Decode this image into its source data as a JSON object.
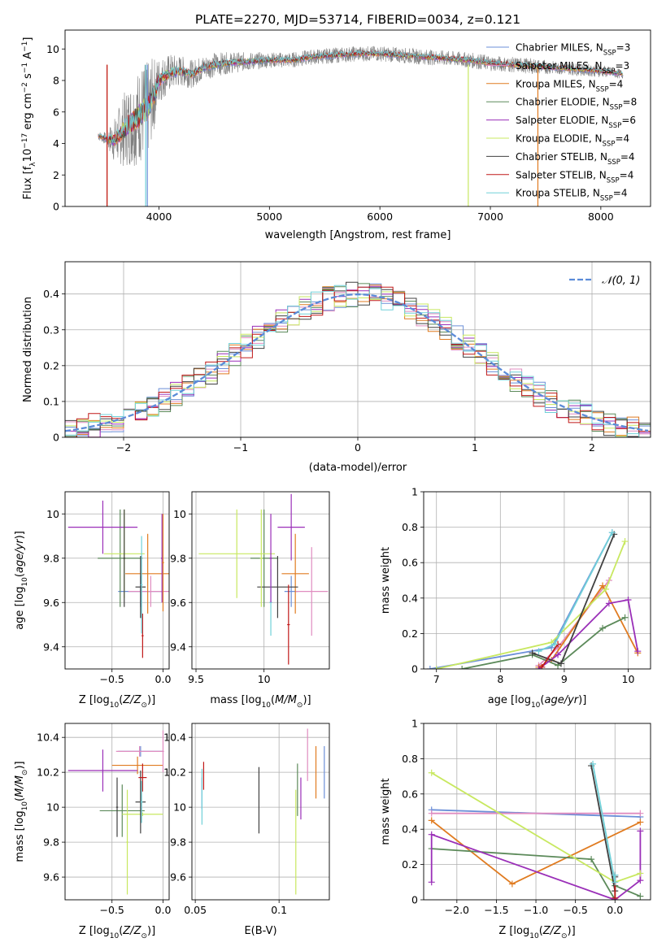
{
  "figure_title": "PLATE=2270, MJD=53714, FIBERID=0034, z=0.121",
  "colors": {
    "chabrier_miles": "#6b8fd8",
    "salpeter_miles": "#e08cc0",
    "kroupa_miles": "#e07b20",
    "chabrier_elodie": "#5c8a5a",
    "salpeter_elodie": "#9a2fb8",
    "kroupa_elodie": "#c8e860",
    "chabrier_stelib": "#404040",
    "salpeter_stelib": "#c01818",
    "kroupa_stelib": "#70d0d8",
    "spectrum": "#808080",
    "normal": "#5b8bd8",
    "grid": "#b0b0b0"
  },
  "chart_data": [
    {
      "id": "spectrum",
      "type": "line",
      "xlabel": "wavelength [Angstrom, rest frame]",
      "ylabel_text": "Flux [f",
      "ylabel_sub": "λ",
      "ylabel_mid": "10",
      "ylabel_sup1": "−17",
      "ylabel_mid2": " erg cm",
      "ylabel_sup2": "−2",
      "ylabel_mid3": " s",
      "ylabel_sup3": "−1",
      "ylabel_mid4": " A",
      "ylabel_sup4": "−1",
      "ylabel_end": "]",
      "xlim": [
        3150,
        8450
      ],
      "ylim": [
        0,
        11.2
      ],
      "xticks": [
        4000,
        5000,
        6000,
        7000,
        8000
      ],
      "yticks": [
        0,
        2,
        4,
        6,
        8,
        10
      ],
      "grid": false,
      "legend_position": "top-right",
      "legend": [
        {
          "pre": "Chabrier MILES, N",
          "sub": "SSP",
          "post": "=3",
          "color_key": "chabrier_miles"
        },
        {
          "pre": "Salpeter MILES, N",
          "sub": "SSP",
          "post": "=3",
          "color_key": "salpeter_miles"
        },
        {
          "pre": "Kroupa MILES, N",
          "sub": "SSP",
          "post": "=4",
          "color_key": "kroupa_miles"
        },
        {
          "pre": "Chabrier ELODIE, N",
          "sub": "SSP",
          "post": "=8",
          "color_key": "chabrier_elodie"
        },
        {
          "pre": "Salpeter ELODIE, N",
          "sub": "SSP",
          "post": "=6",
          "color_key": "salpeter_elodie"
        },
        {
          "pre": "Kroupa ELODIE, N",
          "sub": "SSP",
          "post": "=4",
          "color_key": "kroupa_elodie"
        },
        {
          "pre": "Chabrier STELIB, N",
          "sub": "SSP",
          "post": "=4",
          "color_key": "chabrier_stelib"
        },
        {
          "pre": "Salpeter STELIB, N",
          "sub": "SSP",
          "post": "=4",
          "color_key": "salpeter_stelib"
        },
        {
          "pre": "Kroupa STELIB, N",
          "sub": "SSP",
          "post": "=4",
          "color_key": "kroupa_stelib"
        }
      ],
      "spectrum_anchors": {
        "x": [
          3450,
          3520,
          3600,
          3700,
          3800,
          3850,
          3900,
          3950,
          4000,
          4100,
          4200,
          4300,
          4400,
          4500,
          4600,
          4800,
          5000,
          5200,
          5400,
          5600,
          5800,
          6000,
          6200,
          6400,
          6600,
          6800,
          7000,
          7200,
          7400,
          7600,
          7800,
          8000,
          8200
        ],
        "y": [
          4.5,
          4.3,
          4.2,
          5.0,
          5.6,
          6.0,
          6.2,
          7.0,
          8.0,
          8.5,
          8.6,
          8.4,
          8.8,
          9.0,
          9.1,
          9.2,
          9.3,
          9.3,
          9.5,
          9.6,
          9.7,
          9.7,
          9.6,
          9.5,
          9.4,
          9.3,
          9.1,
          9.0,
          8.9,
          8.8,
          8.7,
          8.6,
          8.4
        ],
        "noise": [
          0.3,
          0.4,
          1.5,
          2.5,
          3.0,
          3.2,
          3.0,
          2.5,
          1.5,
          1.2,
          1.0,
          0.9,
          0.8,
          0.8,
          0.7,
          0.6,
          0.5,
          0.5,
          0.5,
          0.5,
          0.5,
          0.5,
          0.5,
          0.5,
          0.5,
          0.5,
          0.5,
          0.5,
          0.5,
          0.4,
          0.4,
          0.4,
          0.3
        ]
      },
      "drops": [
        {
          "x": 3530,
          "color_key": "kroupa_miles"
        },
        {
          "x": 3530,
          "color_key": "salpeter_stelib"
        },
        {
          "x": 3880,
          "color_key": "kroupa_stelib"
        },
        {
          "x": 3895,
          "color_key": "chabrier_miles"
        },
        {
          "x": 6800,
          "color_key": "kroupa_elodie"
        },
        {
          "x": 7430,
          "color_key": "kroupa_miles"
        }
      ]
    },
    {
      "id": "residual_hist",
      "type": "line",
      "xlabel": "(data-model)/error",
      "ylabel": "Normed distribution",
      "xlim": [
        -2.5,
        2.5
      ],
      "ylim": [
        0,
        0.49
      ],
      "xticks": [
        -2,
        -1,
        0,
        1,
        2
      ],
      "yticks": [
        0.0,
        0.1,
        0.2,
        0.3,
        0.4
      ],
      "grid": true,
      "legend_position": "top-right",
      "normal_label": "𝒩(0, 1)",
      "bin_width": 0.1
    },
    {
      "id": "age_vs_Z",
      "type": "scatter",
      "xlabel_pre": "Z [log",
      "xlabel_sub": "10",
      "xlabel_post": "(Z/Z",
      "xlabel_sub2": "⊙",
      "xlabel_end": ")]",
      "ylabel_pre": "age  [log",
      "ylabel_sub": "10",
      "ylabel_post": "(age/yr)]",
      "xlim": [
        -0.96,
        0.06
      ],
      "ylim": [
        9.3,
        10.1
      ],
      "xticks": [
        -0.5,
        0.0
      ],
      "xticklabels": [
        "−0.5",
        "0.0"
      ],
      "yticks": [
        9.4,
        9.6,
        9.8,
        10.0
      ],
      "grid": true,
      "points": [
        {
          "x": -0.22,
          "y": 9.65,
          "xerr": 0.22,
          "yerr": 0.07,
          "color_key": "chabrier_miles"
        },
        {
          "x": -0.12,
          "y": 9.65,
          "xerr": 0.22,
          "yerr": 0.07,
          "color_key": "salpeter_miles"
        },
        {
          "x": -0.15,
          "y": 9.73,
          "xerr": 0.22,
          "yerr": 0.18,
          "color_key": "kroupa_miles"
        },
        {
          "x": -0.42,
          "y": 9.8,
          "xerr": 0.22,
          "yerr": 0.22,
          "color_key": "chabrier_elodie"
        },
        {
          "x": -0.59,
          "y": 9.94,
          "xerr": 0.34,
          "yerr": 0.12,
          "color_key": "salpeter_elodie"
        },
        {
          "x": -0.38,
          "y": 9.82,
          "xerr": 0.2,
          "yerr": 0.2,
          "color_key": "kroupa_elodie"
        },
        {
          "x": -0.22,
          "y": 9.67,
          "xerr": 0.05,
          "yerr": 0.14,
          "color_key": "chabrier_stelib"
        },
        {
          "x": -0.2,
          "y": 9.45,
          "xerr": 0.01,
          "yerr": 0.1,
          "color_key": "salpeter_stelib"
        },
        {
          "x": -0.21,
          "y": 9.68,
          "xerr": 0.01,
          "yerr": 0.22,
          "color_key": "kroupa_stelib"
        },
        {
          "x": -0.01,
          "y": 9.8,
          "xerr": 0.01,
          "yerr": 0.2,
          "color_key": "salpeter_elodie"
        },
        {
          "x": 0.0,
          "y": 9.78,
          "xerr": 0.01,
          "yerr": 0.22,
          "color_key": "kroupa_miles"
        },
        {
          "x": -0.38,
          "y": 9.8,
          "xerr": 0.01,
          "yerr": 0.22,
          "color_key": "chabrier_stelib"
        }
      ]
    },
    {
      "id": "age_vs_mass",
      "type": "scatter",
      "xlabel_pre": "mass [log",
      "xlabel_sub": "10",
      "xlabel_post": "(M/M",
      "xlabel_sub2": "⊙",
      "xlabel_end": ")]",
      "xlim": [
        9.47,
        10.48
      ],
      "ylim": [
        9.3,
        10.1
      ],
      "xticks": [
        9.5,
        10.0
      ],
      "yticks": [
        9.4,
        9.6,
        9.8,
        10.0
      ],
      "grid": true,
      "points": [
        {
          "x": 10.2,
          "y": 9.65,
          "xerr": 0.05,
          "yerr": 0.07,
          "color_key": "chabrier_miles"
        },
        {
          "x": 10.35,
          "y": 9.65,
          "xerr": 0.12,
          "yerr": 0.2,
          "color_key": "salpeter_miles"
        },
        {
          "x": 10.23,
          "y": 9.73,
          "xerr": 0.1,
          "yerr": 0.18,
          "color_key": "kroupa_miles"
        },
        {
          "x": 10.0,
          "y": 9.8,
          "xerr": 0.1,
          "yerr": 0.22,
          "color_key": "chabrier_elodie"
        },
        {
          "x": 10.2,
          "y": 9.94,
          "xerr": 0.1,
          "yerr": 0.15,
          "color_key": "salpeter_elodie"
        },
        {
          "x": 9.8,
          "y": 9.82,
          "xerr": 0.28,
          "yerr": 0.2,
          "color_key": "kroupa_elodie"
        },
        {
          "x": 10.1,
          "y": 9.67,
          "xerr": 0.15,
          "yerr": 0.14,
          "color_key": "chabrier_stelib"
        },
        {
          "x": 10.18,
          "y": 9.5,
          "xerr": 0.01,
          "yerr": 0.18,
          "color_key": "salpeter_stelib"
        },
        {
          "x": 10.05,
          "y": 9.6,
          "xerr": 0.01,
          "yerr": 0.15,
          "color_key": "kroupa_stelib"
        },
        {
          "x": 10.05,
          "y": 9.8,
          "xerr": 0.01,
          "yerr": 0.2,
          "color_key": "salpeter_elodie"
        },
        {
          "x": 9.98,
          "y": 9.8,
          "xerr": 0.01,
          "yerr": 0.22,
          "color_key": "kroupa_elodie"
        }
      ]
    },
    {
      "id": "weight_vs_age",
      "type": "line",
      "xlabel_pre": "age  [log",
      "xlabel_sub": "10",
      "xlabel_post": "(age/yr)]",
      "ylabel": "mass weight",
      "xlim": [
        6.8,
        10.35
      ],
      "ylim": [
        0,
        1.0
      ],
      "xticks": [
        7,
        8,
        9,
        10
      ],
      "yticks": [
        0.0,
        0.2,
        0.4,
        0.6,
        0.8,
        1.0
      ],
      "grid": true,
      "series": [
        {
          "color_key": "chabrier_miles",
          "x": [
            6.9,
            8.8,
            9.75
          ],
          "y": [
            0.0,
            0.12,
            0.77
          ]
        },
        {
          "color_key": "salpeter_miles",
          "x": [
            8.6,
            8.9,
            9.7
          ],
          "y": [
            0.02,
            0.12,
            0.5
          ]
        },
        {
          "color_key": "kroupa_miles",
          "x": [
            8.6,
            8.8,
            9.6,
            10.15
          ],
          "y": [
            0.01,
            0.05,
            0.47,
            0.09
          ]
        },
        {
          "color_key": "chabrier_elodie",
          "x": [
            7.4,
            8.5,
            8.9,
            9.6,
            9.95
          ],
          "y": [
            0.0,
            0.08,
            0.02,
            0.23,
            0.29
          ]
        },
        {
          "color_key": "salpeter_elodie",
          "x": [
            8.6,
            8.9,
            9.7,
            10.0,
            10.15
          ],
          "y": [
            0.0,
            0.08,
            0.37,
            0.39,
            0.1
          ]
        },
        {
          "color_key": "kroupa_elodie",
          "x": [
            7.0,
            8.8,
            9.65,
            9.95
          ],
          "y": [
            0.0,
            0.15,
            0.45,
            0.72
          ]
        },
        {
          "color_key": "chabrier_stelib",
          "x": [
            8.5,
            8.95,
            9.78
          ],
          "y": [
            0.09,
            0.03,
            0.76
          ]
        },
        {
          "color_key": "salpeter_stelib",
          "x": [
            8.65,
            8.9
          ],
          "y": [
            0.01,
            0.14
          ]
        },
        {
          "color_key": "kroupa_stelib",
          "x": [
            8.6,
            8.85,
            9.75
          ],
          "y": [
            0.1,
            0.14,
            0.77
          ]
        }
      ]
    },
    {
      "id": "mass_vs_Z",
      "type": "scatter",
      "xlabel_pre": "Z [log",
      "xlabel_sub": "10",
      "xlabel_post": "(Z/Z",
      "xlabel_sub2": "⊙",
      "xlabel_end": ")]",
      "ylabel_pre": "mass [log",
      "ylabel_sub": "10",
      "ylabel_post": "(M/M",
      "ylabel_sub2": "⊙",
      "ylabel_end": ")]",
      "xlim": [
        -0.96,
        0.06
      ],
      "ylim": [
        9.47,
        10.48
      ],
      "xticks": [
        -0.5,
        0.0
      ],
      "xticklabels": [
        "−0.5",
        "0.0"
      ],
      "yticks": [
        9.6,
        9.8,
        10.0,
        10.2,
        10.4
      ],
      "grid": true,
      "points": [
        {
          "x": -0.22,
          "y": 10.32,
          "xerr": 0.22,
          "yerr": 0.03,
          "color_key": "chabrier_miles"
        },
        {
          "x": -0.23,
          "y": 10.32,
          "xerr": 0.23,
          "yerr": 0.03,
          "color_key": "salpeter_miles"
        },
        {
          "x": -0.25,
          "y": 10.24,
          "xerr": 0.25,
          "yerr": 0.05,
          "color_key": "kroupa_miles"
        },
        {
          "x": -0.4,
          "y": 9.98,
          "xerr": 0.22,
          "yerr": 0.15,
          "color_key": "chabrier_elodie"
        },
        {
          "x": -0.59,
          "y": 10.21,
          "xerr": 0.34,
          "yerr": 0.12,
          "color_key": "salpeter_elodie"
        },
        {
          "x": -0.2,
          "y": 9.96,
          "xerr": 0.2,
          "yerr": 0.01,
          "color_key": "kroupa_elodie"
        },
        {
          "x": -0.22,
          "y": 10.03,
          "xerr": 0.05,
          "yerr": 0.18,
          "color_key": "chabrier_stelib"
        },
        {
          "x": -0.2,
          "y": 10.17,
          "xerr": 0.04,
          "yerr": 0.08,
          "color_key": "salpeter_stelib"
        },
        {
          "x": -0.21,
          "y": 10.03,
          "xerr": 0.01,
          "yerr": 0.12,
          "color_key": "kroupa_stelib"
        },
        {
          "x": -0.35,
          "y": 9.8,
          "xerr": 0.01,
          "yerr": 0.3,
          "color_key": "kroupa_elodie"
        },
        {
          "x": -0.45,
          "y": 10.0,
          "xerr": 0.01,
          "yerr": 0.17,
          "color_key": "chabrier_stelib"
        },
        {
          "x": 0.0,
          "y": 10.32,
          "xerr": 0.01,
          "yerr": 0.12,
          "color_key": "salpeter_miles"
        }
      ]
    },
    {
      "id": "mass_vs_ebv",
      "type": "scatter",
      "xlabel": "E(B-V)",
      "xlim": [
        0.048,
        0.13
      ],
      "ylim": [
        9.47,
        10.48
      ],
      "xticks": [
        0.05,
        0.1
      ],
      "yticks": [
        9.6,
        9.8,
        10.0,
        10.2,
        10.4
      ],
      "grid": true,
      "points": [
        {
          "x": 0.054,
          "y": 10.08,
          "xerr": 0,
          "yerr": 0.09,
          "color_key": "chabrier_miles"
        },
        {
          "x": 0.054,
          "y": 10.06,
          "xerr": 0,
          "yerr": 0.16,
          "color_key": "kroupa_stelib"
        },
        {
          "x": 0.055,
          "y": 10.18,
          "xerr": 0,
          "yerr": 0.08,
          "color_key": "salpeter_stelib"
        },
        {
          "x": 0.088,
          "y": 10.04,
          "xerr": 0,
          "yerr": 0.19,
          "color_key": "chabrier_stelib"
        },
        {
          "x": 0.11,
          "y": 9.8,
          "xerr": 0,
          "yerr": 0.3,
          "color_key": "kroupa_elodie"
        },
        {
          "x": 0.111,
          "y": 10.1,
          "xerr": 0,
          "yerr": 0.15,
          "color_key": "chabrier_elodie"
        },
        {
          "x": 0.113,
          "y": 10.05,
          "xerr": 0,
          "yerr": 0.12,
          "color_key": "salpeter_elodie"
        },
        {
          "x": 0.117,
          "y": 10.3,
          "xerr": 0,
          "yerr": 0.15,
          "color_key": "salpeter_miles"
        },
        {
          "x": 0.122,
          "y": 10.2,
          "xerr": 0,
          "yerr": 0.15,
          "color_key": "kroupa_miles"
        },
        {
          "x": 0.127,
          "y": 10.2,
          "xerr": 0,
          "yerr": 0.15,
          "color_key": "chabrier_miles"
        }
      ]
    },
    {
      "id": "weight_vs_Z",
      "type": "line",
      "xlabel_pre": "Z [log",
      "xlabel_sub": "10",
      "xlabel_post": "(Z/Z",
      "xlabel_sub2": "⊙",
      "xlabel_end": ")]",
      "ylabel": "mass weight",
      "xlim": [
        -2.42,
        0.45
      ],
      "ylim": [
        0,
        1.0
      ],
      "xticks": [
        -2.0,
        -1.5,
        -1.0,
        -0.5,
        0.0
      ],
      "xticklabels": [
        "−2.0",
        "−1.5",
        "−1.0",
        "−0.5",
        "0.0"
      ],
      "yticks": [
        0.0,
        0.2,
        0.4,
        0.6,
        0.8,
        1.0
      ],
      "grid": true,
      "series": [
        {
          "color_key": "chabrier_miles",
          "x": [
            -2.32,
            0.32
          ],
          "y": [
            0.51,
            0.47
          ]
        },
        {
          "color_key": "salpeter_miles",
          "x": [
            -2.32,
            0.32
          ],
          "y": [
            0.49,
            0.49
          ]
        },
        {
          "color_key": "kroupa_miles",
          "x": [
            -2.32,
            -1.3,
            0.32
          ],
          "y": [
            0.45,
            0.09,
            0.44
          ]
        },
        {
          "color_key": "chabrier_elodie",
          "x": [
            -2.32,
            -0.3,
            0.0,
            0.0,
            0.32
          ],
          "y": [
            0.29,
            0.23,
            0.0,
            0.08,
            0.02
          ]
        },
        {
          "color_key": "salpeter_elodie",
          "x": [
            -2.32,
            -2.32,
            0.0,
            0.32,
            0.32
          ],
          "y": [
            0.1,
            0.37,
            0.0,
            0.11,
            0.39
          ]
        },
        {
          "color_key": "kroupa_elodie",
          "x": [
            -2.32,
            0.0,
            0.32
          ],
          "y": [
            0.72,
            0.1,
            0.15
          ]
        },
        {
          "color_key": "chabrier_stelib",
          "x": [
            -0.3,
            0.0,
            0.0
          ],
          "y": [
            0.76,
            0.05,
            0.13
          ]
        },
        {
          "color_key": "salpeter_stelib",
          "x": [
            0.0,
            0.0
          ],
          "y": [
            0.01,
            0.14
          ]
        },
        {
          "color_key": "kroupa_stelib",
          "x": [
            -0.28,
            0.0,
            0.0
          ],
          "y": [
            0.77,
            0.1,
            0.14
          ]
        }
      ]
    }
  ]
}
